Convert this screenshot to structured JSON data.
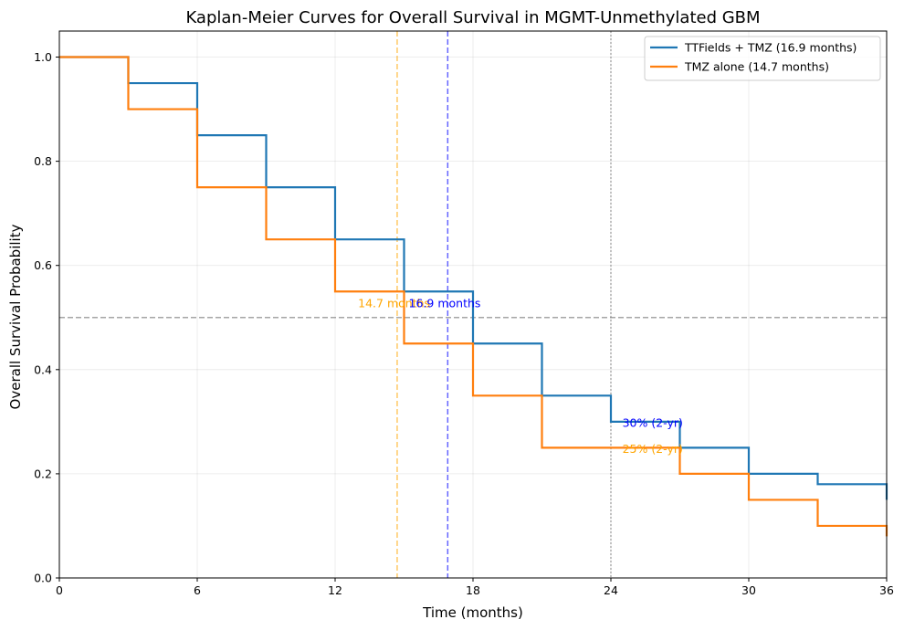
{
  "chart_data": {
    "type": "line",
    "step": "post",
    "title": "Kaplan-Meier Curves for Overall Survival in MGMT-Unmethylated GBM",
    "xlabel": "Time (months)",
    "ylabel": "Overall Survival Probability",
    "xlim": [
      0,
      36
    ],
    "ylim": [
      0,
      1.05
    ],
    "xticks": [
      "0",
      "6",
      "12",
      "18",
      "24",
      "30",
      "36"
    ],
    "yticks": [
      "0.0",
      "0.2",
      "0.4",
      "0.6",
      "0.8",
      "1.0"
    ],
    "grid": true,
    "legend_position": "top-right",
    "series": [
      {
        "name": "TTFields + TMZ (16.9 months)",
        "color": "#1f77b4",
        "x": [
          0,
          3,
          6,
          9,
          12,
          15,
          18,
          21,
          24,
          27,
          30,
          33,
          36
        ],
        "y": [
          1.0,
          0.95,
          0.85,
          0.75,
          0.65,
          0.55,
          0.45,
          0.35,
          0.3,
          0.25,
          0.2,
          0.18,
          0.15
        ]
      },
      {
        "name": "TMZ alone (14.7 months)",
        "color": "#ff7f0e",
        "x": [
          0,
          3,
          6,
          9,
          12,
          15,
          18,
          21,
          24,
          27,
          30,
          33,
          36
        ],
        "y": [
          1.0,
          0.9,
          0.75,
          0.65,
          0.55,
          0.45,
          0.35,
          0.25,
          0.25,
          0.2,
          0.15,
          0.1,
          0.08
        ]
      }
    ],
    "reference_lines": [
      {
        "orientation": "horizontal",
        "value": 0.5,
        "color": "#808080",
        "style": "dashed"
      },
      {
        "orientation": "vertical",
        "value": 14.7,
        "color": "#ffa500",
        "style": "dashed"
      },
      {
        "orientation": "vertical",
        "value": 16.9,
        "color": "#0000ff",
        "style": "dashed"
      },
      {
        "orientation": "vertical",
        "value": 24,
        "color": "#808080",
        "style": "dotted"
      }
    ],
    "annotations": [
      {
        "text": "14.7 months",
        "x": 13.0,
        "y": 0.52,
        "color": "#ffa500"
      },
      {
        "text": "16.9 months",
        "x": 15.2,
        "y": 0.52,
        "color": "#0000ff"
      },
      {
        "text": "30% (2-yr)",
        "x": 24.5,
        "y": 0.29,
        "color": "#0000ff"
      },
      {
        "text": "25% (2-yr)",
        "x": 24.5,
        "y": 0.24,
        "color": "#ffa500"
      }
    ]
  }
}
